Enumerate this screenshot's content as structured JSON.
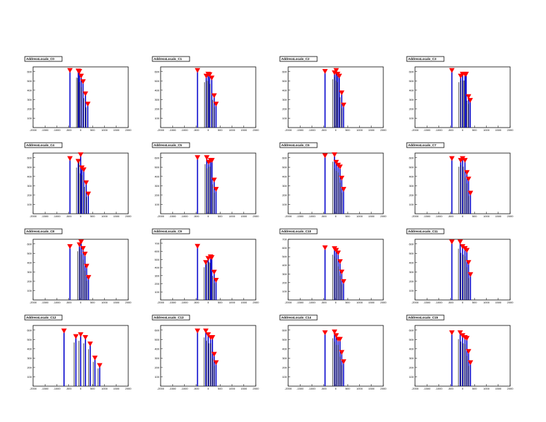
{
  "canvas": {
    "colors": {
      "bar": "#0000cc",
      "secondary": "#000000",
      "marker": "#ff0000"
    }
  },
  "chart_data": [
    {
      "type": "bar",
      "title": "AddressLocalo_C0",
      "xlim": [
        -2000,
        2000
      ],
      "ylim": [
        0,
        650
      ],
      "xticks": [
        -2000,
        -1500,
        -1000,
        -500,
        0,
        500,
        1000,
        1500,
        2000
      ],
      "yticks": [
        100,
        200,
        300,
        400,
        500,
        600
      ],
      "peaks": [
        [
          -450,
          600
        ],
        [
          -100,
          595
        ],
        [
          -50,
          590
        ],
        [
          20,
          540
        ],
        [
          100,
          480
        ],
        [
          200,
          350
        ],
        [
          300,
          240
        ]
      ]
    },
    {
      "type": "bar",
      "title": "AddressLocalo_C1",
      "xlim": [
        -2000,
        2000
      ],
      "ylim": [
        0,
        650
      ],
      "xticks": [
        -2000,
        -1500,
        -1000,
        -500,
        0,
        500,
        1000,
        1500,
        2000
      ],
      "yticks": [
        100,
        200,
        300,
        400,
        500,
        600
      ],
      "peaks": [
        [
          -450,
          600
        ],
        [
          -80,
          540
        ],
        [
          0,
          560
        ],
        [
          60,
          555
        ],
        [
          150,
          520
        ],
        [
          250,
          330
        ],
        [
          330,
          240
        ]
      ]
    },
    {
      "type": "bar",
      "title": "AddressLocalo_C2",
      "xlim": [
        -2000,
        2000
      ],
      "ylim": [
        0,
        650
      ],
      "xticks": [
        -2000,
        -1500,
        -1000,
        -500,
        0,
        500,
        1000,
        1500,
        2000
      ],
      "yticks": [
        100,
        200,
        300,
        400,
        500,
        600
      ],
      "peaks": [
        [
          -450,
          590
        ],
        [
          -50,
          575
        ],
        [
          20,
          600
        ],
        [
          80,
          560
        ],
        [
          150,
          540
        ],
        [
          250,
          360
        ],
        [
          330,
          230
        ]
      ]
    },
    {
      "type": "bar",
      "title": "AddressLocalo_C3",
      "xlim": [
        -2000,
        2000
      ],
      "ylim": [
        0,
        650
      ],
      "xticks": [
        -2000,
        -1500,
        -1000,
        -500,
        0,
        500,
        1000,
        1500,
        2000
      ],
      "yticks": [
        100,
        200,
        300,
        400,
        500,
        600
      ],
      "peaks": [
        [
          -450,
          600
        ],
        [
          -80,
          540
        ],
        [
          0,
          560
        ],
        [
          100,
          560
        ],
        [
          150,
          560
        ],
        [
          250,
          320
        ],
        [
          320,
          280
        ]
      ]
    },
    {
      "type": "bar",
      "title": "AddressLocalo_C4",
      "xlim": [
        -2000,
        2000
      ],
      "ylim": [
        0,
        650
      ],
      "xticks": [
        -2000,
        -1500,
        -1000,
        -500,
        0,
        500,
        1000,
        1500,
        2000
      ],
      "yticks": [
        100,
        200,
        300,
        400,
        500,
        600
      ],
      "peaks": [
        [
          -450,
          580
        ],
        [
          -100,
          550
        ],
        [
          0,
          620
        ],
        [
          50,
          480
        ],
        [
          130,
          460
        ],
        [
          230,
          320
        ],
        [
          320,
          200
        ]
      ]
    },
    {
      "type": "bar",
      "title": "AddressLocalo_C5",
      "xlim": [
        -2000,
        2000
      ],
      "ylim": [
        0,
        650
      ],
      "xticks": [
        -2000,
        -1500,
        -1000,
        -500,
        0,
        500,
        1000,
        1500,
        2000
      ],
      "yticks": [
        100,
        200,
        300,
        400,
        500,
        600
      ],
      "peaks": [
        [
          -450,
          590
        ],
        [
          -60,
          590
        ],
        [
          20,
          540
        ],
        [
          100,
          560
        ],
        [
          160,
          560
        ],
        [
          250,
          350
        ],
        [
          330,
          250
        ]
      ]
    },
    {
      "type": "bar",
      "title": "AddressLocalo_C6",
      "xlim": [
        -2000,
        2000
      ],
      "ylim": [
        0,
        650
      ],
      "xticks": [
        -2000,
        -1500,
        -1000,
        -500,
        0,
        500,
        1000,
        1500,
        2000
      ],
      "yticks": [
        100,
        200,
        300,
        400,
        500,
        600
      ],
      "peaks": [
        [
          -450,
          610
        ],
        [
          -50,
          620
        ],
        [
          20,
          540
        ],
        [
          100,
          510
        ],
        [
          180,
          490
        ],
        [
          250,
          370
        ],
        [
          330,
          250
        ]
      ]
    },
    {
      "type": "bar",
      "title": "AddressLocalo_C7",
      "xlim": [
        -2000,
        2000
      ],
      "ylim": [
        0,
        650
      ],
      "xticks": [
        -2000,
        -1500,
        -1000,
        -500,
        0,
        500,
        1000,
        1500,
        2000
      ],
      "yticks": [
        100,
        200,
        300,
        400,
        500,
        600
      ],
      "peaks": [
        [
          -450,
          580
        ],
        [
          -80,
          560
        ],
        [
          0,
          580
        ],
        [
          100,
          560
        ],
        [
          180,
          430
        ],
        [
          250,
          360
        ],
        [
          330,
          210
        ]
      ]
    },
    {
      "type": "bar",
      "title": "AddressLocalo_C8",
      "xlim": [
        -2000,
        2000
      ],
      "ylim": [
        0,
        650
      ],
      "xticks": [
        -2000,
        -1500,
        -1000,
        -500,
        0,
        500,
        1000,
        1500,
        2000
      ],
      "yticks": [
        100,
        200,
        300,
        400,
        500,
        600
      ],
      "peaks": [
        [
          -450,
          560
        ],
        [
          -50,
          580
        ],
        [
          20,
          610
        ],
        [
          100,
          540
        ],
        [
          180,
          480
        ],
        [
          250,
          350
        ],
        [
          330,
          230
        ]
      ]
    },
    {
      "type": "bar",
      "title": "AddressLocalo_C9",
      "xlim": [
        -2000,
        2000
      ],
      "ylim": [
        0,
        750
      ],
      "xticks": [
        -2000,
        -1500,
        -1000,
        -500,
        0,
        500,
        1000,
        1500,
        2000
      ],
      "yticks": [
        100,
        200,
        300,
        400,
        500,
        600,
        700
      ],
      "peaks": [
        [
          -450,
          650
        ],
        [
          -100,
          450
        ],
        [
          0,
          500
        ],
        [
          100,
          520
        ],
        [
          150,
          510
        ],
        [
          250,
          330
        ],
        [
          330,
          230
        ]
      ]
    },
    {
      "type": "bar",
      "title": "AddressLocalo_C10",
      "xlim": [
        -2000,
        2000
      ],
      "ylim": [
        0,
        700
      ],
      "xticks": [
        -2000,
        -1500,
        -1000,
        -500,
        0,
        500,
        1000,
        1500,
        2000
      ],
      "yticks": [
        100,
        200,
        300,
        400,
        500,
        600,
        700
      ],
      "peaks": [
        [
          -450,
          590
        ],
        [
          -50,
          580
        ],
        [
          20,
          560
        ],
        [
          100,
          530
        ],
        [
          180,
          430
        ],
        [
          250,
          310
        ],
        [
          330,
          200
        ]
      ]
    },
    {
      "type": "bar",
      "title": "AddressLocalo_C11",
      "xlim": [
        -2000,
        2000
      ],
      "ylim": [
        0,
        650
      ],
      "xticks": [
        -2000,
        -1500,
        -1000,
        -500,
        0,
        500,
        1000,
        1500,
        2000
      ],
      "yticks": [
        100,
        200,
        300,
        400,
        500,
        600
      ],
      "peaks": [
        [
          -450,
          610
        ],
        [
          -100,
          610
        ],
        [
          0,
          560
        ],
        [
          100,
          540
        ],
        [
          180,
          520
        ],
        [
          250,
          390
        ],
        [
          330,
          260
        ]
      ]
    },
    {
      "type": "bar",
      "title": "AddressLocalo_C12",
      "xlim": [
        -2000,
        2000
      ],
      "ylim": [
        0,
        650
      ],
      "xticks": [
        -2000,
        -1500,
        -1000,
        -500,
        0,
        500,
        1000,
        1500,
        2000
      ],
      "yticks": [
        100,
        200,
        300,
        400,
        500,
        600
      ],
      "peaks": [
        [
          -700,
          580
        ],
        [
          -200,
          520
        ],
        [
          0,
          540
        ],
        [
          200,
          510
        ],
        [
          400,
          440
        ],
        [
          600,
          290
        ],
        [
          800,
          210
        ]
      ]
    },
    {
      "type": "bar",
      "title": "AddressLocalo_C13",
      "xlim": [
        -2000,
        2000
      ],
      "ylim": [
        0,
        650
      ],
      "xticks": [
        -2000,
        -1500,
        -1000,
        -500,
        0,
        500,
        1000,
        1500,
        2000
      ],
      "yticks": [
        100,
        200,
        300,
        400,
        500,
        600
      ],
      "peaks": [
        [
          -450,
          580
        ],
        [
          -100,
          580
        ],
        [
          0,
          540
        ],
        [
          100,
          510
        ],
        [
          180,
          510
        ],
        [
          250,
          330
        ],
        [
          330,
          240
        ]
      ]
    },
    {
      "type": "bar",
      "title": "AddressLocalo_C14",
      "xlim": [
        -2000,
        2000
      ],
      "ylim": [
        0,
        650
      ],
      "xticks": [
        -2000,
        -1500,
        -1000,
        -500,
        0,
        500,
        1000,
        1500,
        2000
      ],
      "yticks": [
        100,
        200,
        300,
        400,
        500,
        600
      ],
      "peaks": [
        [
          -450,
          560
        ],
        [
          -50,
          570
        ],
        [
          20,
          530
        ],
        [
          100,
          490
        ],
        [
          180,
          490
        ],
        [
          250,
          350
        ],
        [
          330,
          250
        ]
      ]
    },
    {
      "type": "bar",
      "title": "AddressLocalo_C15",
      "xlim": [
        -2000,
        2000
      ],
      "ylim": [
        0,
        650
      ],
      "xticks": [
        -2000,
        -1500,
        -1000,
        -500,
        0,
        500,
        1000,
        1500,
        2000
      ],
      "yticks": [
        100,
        200,
        300,
        400,
        500,
        600
      ],
      "peaks": [
        [
          -450,
          560
        ],
        [
          -100,
          560
        ],
        [
          0,
          530
        ],
        [
          100,
          510
        ],
        [
          180,
          500
        ],
        [
          250,
          360
        ],
        [
          330,
          240
        ]
      ]
    }
  ]
}
